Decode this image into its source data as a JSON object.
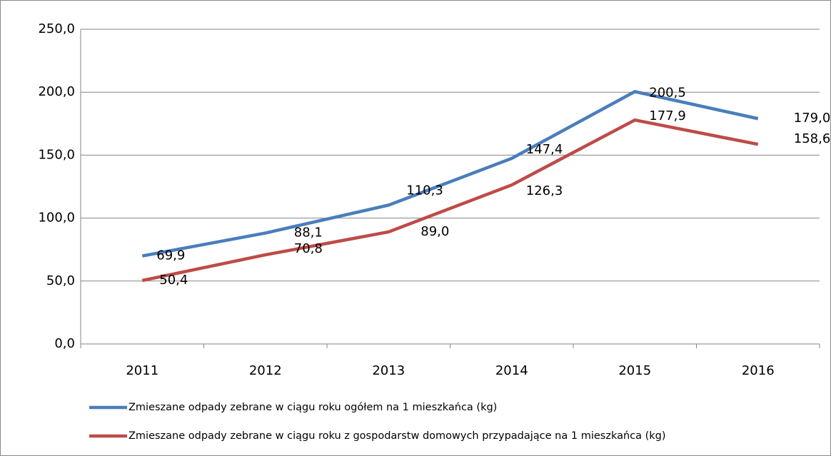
{
  "chart_data": {
    "type": "line",
    "categories": [
      "2011",
      "2012",
      "2013",
      "2014",
      "2015",
      "2016"
    ],
    "series": [
      {
        "name": "Zmieszane odpady zebrane w ciągu roku ogółem na 1 mieszkańca (kg)",
        "color": "#4a7ebb",
        "values": [
          69.9,
          88.1,
          110.3,
          147.4,
          200.5,
          179.0
        ],
        "value_labels": [
          "69,9",
          "88,1",
          "110,3",
          "147,4",
          "200,5",
          "179,0"
        ]
      },
      {
        "name": "Zmieszane odpady zebrane w ciągu roku  z gospodarstw domowych przypadające na 1 mieszkańca (kg)",
        "color": "#be4b48",
        "values": [
          50.4,
          70.8,
          89.0,
          126.3,
          177.9,
          158.6
        ],
        "value_labels": [
          "50,4",
          "70,8",
          "89,0",
          "126,3",
          "177,9",
          "158,6"
        ]
      }
    ],
    "ylim": [
      0,
      250
    ],
    "yticks": [
      {
        "value": 0,
        "label": "0,0"
      },
      {
        "value": 50,
        "label": "50,0"
      },
      {
        "value": 100,
        "label": "100,0"
      },
      {
        "value": 150,
        "label": "150,0"
      },
      {
        "value": 200,
        "label": "200,0"
      },
      {
        "value": 250,
        "label": "250,0"
      }
    ],
    "grid": true,
    "legend": "bottom"
  }
}
